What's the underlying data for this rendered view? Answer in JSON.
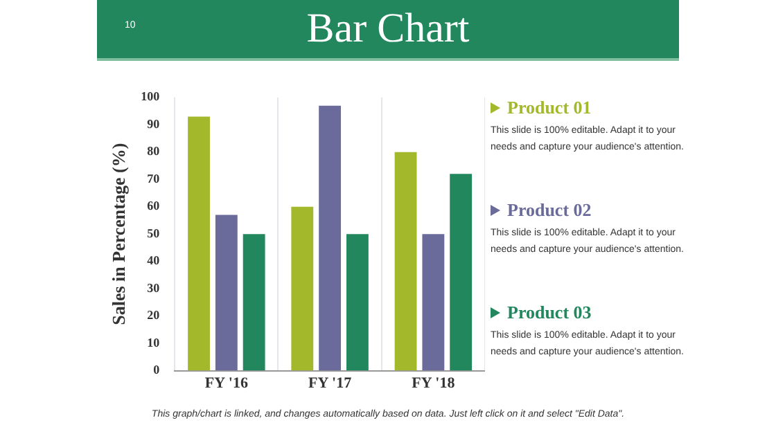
{
  "chart_data": {
    "type": "bar",
    "title": "Bar Chart",
    "ylabel": "Sales in Percentage (%)",
    "categories": [
      "FY '16",
      "FY '17",
      "FY '18"
    ],
    "series": [
      {
        "name": "Product 01",
        "color": "#a4b82c",
        "values": [
          93,
          60,
          80
        ]
      },
      {
        "name": "Product 02",
        "color": "#6a6b9a",
        "values": [
          57,
          97,
          50
        ]
      },
      {
        "name": "Product 03",
        "color": "#23875e",
        "values": [
          50,
          50,
          72
        ]
      }
    ],
    "ylim": [
      0,
      100
    ],
    "yticks": [
      0,
      10,
      20,
      30,
      40,
      50,
      60,
      70,
      80,
      90,
      100
    ],
    "grid": "x",
    "legend": "right",
    "annotations": [
      "10",
      "This slide is 100% editable. Adapt it to your needs and capture your audience's attention.",
      "This slide is 100% editable. Adapt it to your needs and capture your audience's attention.",
      "This slide is 100% editable. Adapt it to your needs and capture your audience's attention.",
      "This graph/chart is linked, and changes automatically based on data. Just left click on it and select \"Edit Data\"."
    ]
  }
}
